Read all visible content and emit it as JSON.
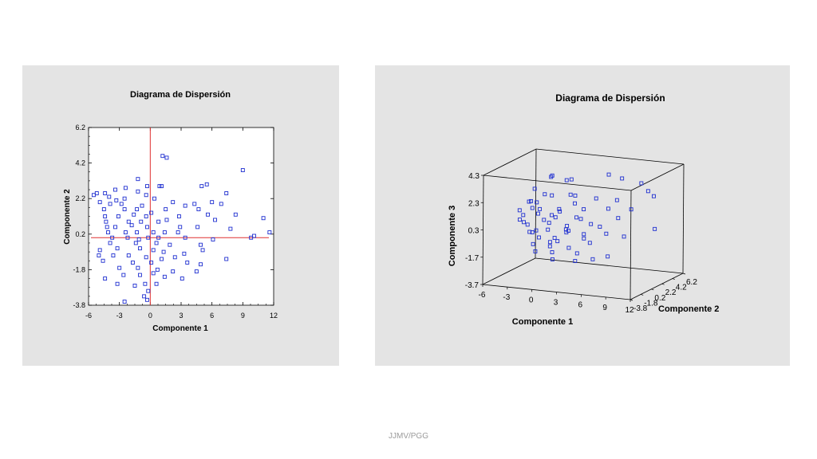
{
  "footer": "JJMV/PGG",
  "colors": {
    "marker": "#1f2fd0",
    "crosshair": "#e03030",
    "panel": "#e4e4e4",
    "axis": "#000000"
  },
  "chart_data": [
    {
      "type": "scatter",
      "title": "Diagrama de Dispersión",
      "xlabel": "Componente 1",
      "ylabel": "Componente 2",
      "xlim": [
        -6,
        12
      ],
      "ylim": [
        -3.8,
        6.2
      ],
      "xticks": [
        "-6",
        "-3",
        "0",
        "3",
        "6",
        "9",
        "12"
      ],
      "yticks": [
        "-3.8",
        "-1.8",
        "0.2",
        "2.2",
        "4.2",
        "6.2"
      ],
      "reference_lines": {
        "x": 0,
        "y": 0
      },
      "marker": "open-square",
      "points": [
        [
          1.2,
          4.6
        ],
        [
          1.6,
          4.5
        ],
        [
          9.0,
          3.8
        ],
        [
          -1.2,
          3.3
        ],
        [
          -0.3,
          2.9
        ],
        [
          0.9,
          2.9
        ],
        [
          1.1,
          2.9
        ],
        [
          -5.2,
          2.5
        ],
        [
          -4.4,
          2.5
        ],
        [
          -1.2,
          2.6
        ],
        [
          5.0,
          2.9
        ],
        [
          5.5,
          3.0
        ],
        [
          7.4,
          2.5
        ],
        [
          -2.4,
          2.8
        ],
        [
          -3.4,
          2.7
        ],
        [
          -5.5,
          2.4
        ],
        [
          -4.0,
          2.3
        ],
        [
          -2.5,
          2.2
        ],
        [
          -0.4,
          2.4
        ],
        [
          -3.3,
          2.1
        ],
        [
          0.4,
          2.2
        ],
        [
          2.2,
          2.0
        ],
        [
          6.0,
          2.0
        ],
        [
          -4.9,
          2.0
        ],
        [
          -3.9,
          1.9
        ],
        [
          -2.8,
          1.9
        ],
        [
          -0.8,
          1.8
        ],
        [
          3.4,
          1.8
        ],
        [
          4.3,
          1.9
        ],
        [
          6.9,
          1.9
        ],
        [
          -4.5,
          1.6
        ],
        [
          -2.5,
          1.6
        ],
        [
          -1.3,
          1.6
        ],
        [
          0.1,
          1.4
        ],
        [
          1.5,
          1.6
        ],
        [
          4.7,
          1.6
        ],
        [
          -4.4,
          1.2
        ],
        [
          -3.1,
          1.2
        ],
        [
          -1.6,
          1.3
        ],
        [
          -0.4,
          1.2
        ],
        [
          2.8,
          1.2
        ],
        [
          5.6,
          1.3
        ],
        [
          8.3,
          1.3
        ],
        [
          11.0,
          1.1
        ],
        [
          -4.3,
          0.9
        ],
        [
          -2.1,
          0.9
        ],
        [
          -0.9,
          0.9
        ],
        [
          0.8,
          0.9
        ],
        [
          1.6,
          1.0
        ],
        [
          6.3,
          1.0
        ],
        [
          -4.2,
          0.6
        ],
        [
          -3.4,
          0.6
        ],
        [
          -1.8,
          0.7
        ],
        [
          -0.3,
          0.6
        ],
        [
          2.9,
          0.6
        ],
        [
          4.6,
          0.6
        ],
        [
          7.8,
          0.5
        ],
        [
          11.6,
          0.3
        ],
        [
          -4.1,
          0.3
        ],
        [
          -2.4,
          0.3
        ],
        [
          -1.3,
          0.3
        ],
        [
          0.3,
          0.3
        ],
        [
          1.4,
          0.3
        ],
        [
          2.7,
          0.3
        ],
        [
          10.1,
          0.1
        ],
        [
          -3.7,
          0.0
        ],
        [
          -2.2,
          0.0
        ],
        [
          -1.1,
          -0.1
        ],
        [
          -0.2,
          0.0
        ],
        [
          0.8,
          0.0
        ],
        [
          3.4,
          0.0
        ],
        [
          6.1,
          -0.1
        ],
        [
          9.8,
          0.0
        ],
        [
          -3.9,
          -0.3
        ],
        [
          -1.4,
          -0.3
        ],
        [
          0.6,
          -0.3
        ],
        [
          1.9,
          -0.4
        ],
        [
          4.9,
          -0.4
        ],
        [
          -4.9,
          -0.7
        ],
        [
          -3.2,
          -0.6
        ],
        [
          -1.0,
          -0.6
        ],
        [
          0.3,
          -0.7
        ],
        [
          1.3,
          -0.8
        ],
        [
          3.3,
          -0.9
        ],
        [
          5.1,
          -0.7
        ],
        [
          -5.0,
          -1.0
        ],
        [
          -3.6,
          -1.0
        ],
        [
          -2.1,
          -1.0
        ],
        [
          -0.4,
          -1.1
        ],
        [
          1.1,
          -1.2
        ],
        [
          2.4,
          -1.1
        ],
        [
          7.4,
          -1.2
        ],
        [
          -4.6,
          -1.3
        ],
        [
          -1.7,
          -1.4
        ],
        [
          0.1,
          -1.4
        ],
        [
          3.6,
          -1.4
        ],
        [
          4.9,
          -1.5
        ],
        [
          -3.0,
          -1.7
        ],
        [
          -1.2,
          -1.7
        ],
        [
          0.7,
          -1.8
        ],
        [
          2.2,
          -1.9
        ],
        [
          4.5,
          -1.9
        ],
        [
          -4.4,
          -2.3
        ],
        [
          -2.6,
          -2.1
        ],
        [
          -1.0,
          -2.1
        ],
        [
          0.3,
          -2.0
        ],
        [
          1.4,
          -2.2
        ],
        [
          3.1,
          -2.3
        ],
        [
          -3.2,
          -2.6
        ],
        [
          -0.5,
          -2.6
        ],
        [
          0.6,
          -2.6
        ],
        [
          -1.5,
          -2.7
        ],
        [
          -0.2,
          -3.0
        ],
        [
          -2.5,
          -3.6
        ],
        [
          -0.6,
          -3.3
        ],
        [
          -0.3,
          -3.5
        ]
      ]
    },
    {
      "type": "scatter",
      "title": "Diagrama de Dispersión",
      "xlabel": "Componente 1",
      "ylabel": "Componente 2",
      "zlabel": "Componente 3",
      "xlim": [
        -6,
        12
      ],
      "ylim": [
        -3.8,
        6.2
      ],
      "zlim": [
        -3.7,
        4.3
      ],
      "xticks": [
        "-6",
        "-3",
        "0",
        "3",
        "6",
        "9",
        "12"
      ],
      "yticks": [
        "-3.8",
        "-1.8",
        "0.2",
        "2.2",
        "4.2",
        "6.2"
      ],
      "zticks": [
        "-3.7",
        "-1.7",
        "0.3",
        "2.3",
        "4.3"
      ],
      "marker": "open-square",
      "points": [
        [
          -2.5,
          0.5,
          2.7
        ],
        [
          -1.2,
          1.8,
          3.5
        ],
        [
          0.7,
          2.5,
          3.2
        ],
        [
          4.6,
          3.5,
          3.6
        ],
        [
          5.9,
          4.0,
          3.3
        ],
        [
          8.0,
          4.4,
          3.0
        ],
        [
          -1.6,
          2.2,
          3.3
        ],
        [
          1.2,
          0.8,
          3.5
        ],
        [
          -2.3,
          -0.5,
          2.0
        ],
        [
          -1.2,
          0.4,
          2.4
        ],
        [
          0.3,
          -0.6,
          2.6
        ],
        [
          1.5,
          1.1,
          2.4
        ],
        [
          2.7,
          0.1,
          2.6
        ],
        [
          4.3,
          1.6,
          2.2
        ],
        [
          6.2,
          2.6,
          2.0
        ],
        [
          8.9,
          4.3,
          2.5
        ],
        [
          9.4,
          4.6,
          2.1
        ],
        [
          -3.5,
          1.0,
          1.6
        ],
        [
          -2.3,
          0.6,
          1.7
        ],
        [
          -0.9,
          -1.0,
          1.6
        ],
        [
          0.5,
          0.5,
          1.4
        ],
        [
          1.6,
          -1.1,
          1.6
        ],
        [
          3.3,
          0.8,
          1.5
        ],
        [
          5.4,
          2.2,
          1.4
        ],
        [
          7.3,
          3.6,
          1.2
        ],
        [
          -3.3,
          -0.4,
          0.9
        ],
        [
          -1.8,
          0.1,
          1.0
        ],
        [
          -0.4,
          0.5,
          0.9
        ],
        [
          0.7,
          -0.5,
          1.0
        ],
        [
          2.3,
          1.0,
          0.8
        ],
        [
          3.6,
          -0.2,
          1.0
        ],
        [
          6.1,
          3.0,
          0.6
        ],
        [
          -4.1,
          0.2,
          0.4
        ],
        [
          -2.9,
          -0.9,
          0.5
        ],
        [
          -1.6,
          0.9,
          0.4
        ],
        [
          -0.2,
          -0.3,
          0.5
        ],
        [
          1.4,
          0.6,
          0.2
        ],
        [
          2.8,
          -1.3,
          0.3
        ],
        [
          4.9,
          1.4,
          0.2
        ],
        [
          -3.4,
          0.6,
          0.0
        ],
        [
          -2.0,
          -1.2,
          -0.1
        ],
        [
          -0.6,
          0.1,
          -0.1
        ],
        [
          0.9,
          1.2,
          -0.2
        ],
        [
          2.1,
          -0.6,
          0.0
        ],
        [
          3.4,
          0.7,
          -0.3
        ],
        [
          5.3,
          2.0,
          -0.4
        ],
        [
          9.8,
          4.2,
          -0.2
        ],
        [
          -3.0,
          0.9,
          -0.6
        ],
        [
          -1.3,
          -0.5,
          -0.6
        ],
        [
          0.1,
          0.3,
          -0.7
        ],
        [
          1.6,
          -1.5,
          -0.5
        ],
        [
          2.9,
          1.5,
          -0.8
        ],
        [
          4.4,
          0.3,
          -0.8
        ],
        [
          7.4,
          2.1,
          -0.5
        ],
        [
          -2.2,
          -0.2,
          -1.2
        ],
        [
          -0.9,
          1.0,
          -1.2
        ],
        [
          0.5,
          -1.2,
          -1.0
        ],
        [
          1.9,
          0.2,
          -1.3
        ],
        [
          3.3,
          -0.4,
          -1.5
        ],
        [
          -1.6,
          -0.7,
          -1.6
        ],
        [
          0.0,
          0.0,
          -1.7
        ],
        [
          1.2,
          -1.8,
          -1.8
        ],
        [
          3.0,
          -0.3,
          -2.1
        ],
        [
          4.7,
          0.4,
          -2.0
        ],
        [
          6.2,
          0.9,
          -1.8
        ],
        [
          -3.8,
          -0.3,
          1.2
        ],
        [
          -2.7,
          0.4,
          1.3
        ],
        [
          -1.9,
          -0.1,
          -0.2
        ],
        [
          2.6,
          0.2,
          2.0
        ],
        [
          4.0,
          1.1,
          0.4
        ]
      ]
    }
  ]
}
